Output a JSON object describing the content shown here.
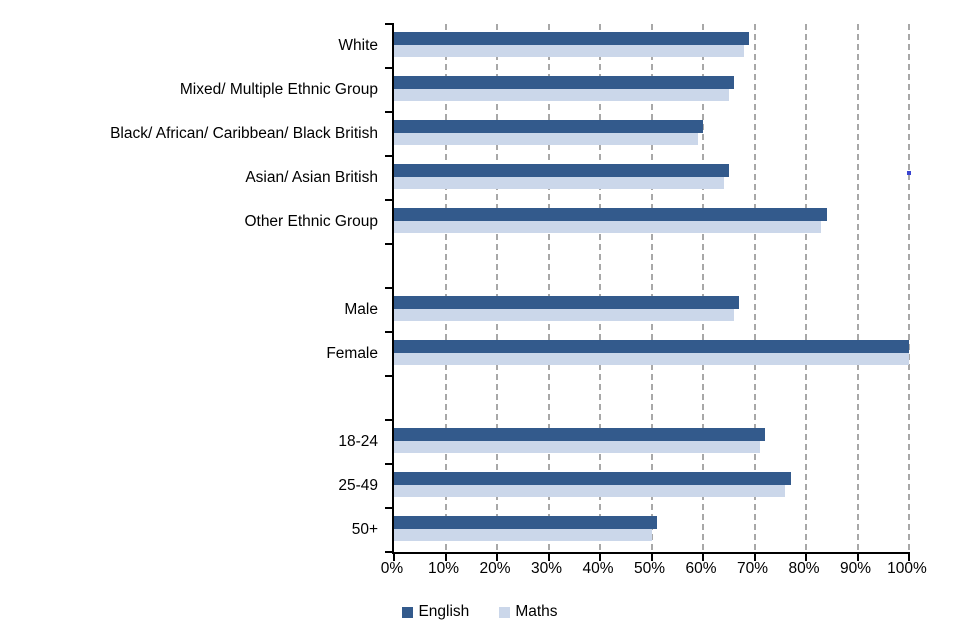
{
  "colors": {
    "english": "#335A8C",
    "maths": "#CBD7EA",
    "gridline": "#A8A8A8",
    "axis": "#000000",
    "stray_dot": "#3A45D0"
  },
  "chart_data": {
    "type": "bar",
    "orientation": "horizontal",
    "title": "",
    "xlabel": "",
    "ylabel": "",
    "categories": [
      "White",
      "Mixed/ Multiple Ethnic Group",
      "Black/ African/ Caribbean/ Black British",
      "Asian/ Asian British",
      "Other Ethnic Group",
      "",
      "Male",
      "Female",
      "",
      "18-24",
      "25-49",
      "50+"
    ],
    "series": [
      {
        "name": "English",
        "color": "#335A8C",
        "values": [
          69,
          66,
          60,
          65,
          84,
          null,
          67,
          100,
          null,
          72,
          77,
          51
        ]
      },
      {
        "name": "Maths",
        "color": "#CBD7EA",
        "values": [
          68,
          65,
          59,
          64,
          83,
          null,
          66,
          100,
          null,
          71,
          76,
          50
        ]
      }
    ],
    "x_axis": {
      "min": 0,
      "max": 100,
      "tick_labels": [
        "0%",
        "10%",
        "20%",
        "30%",
        "40%",
        "50%",
        "60%",
        "70%",
        "80%",
        "90%",
        "100%"
      ],
      "gridlines": "dashed-vertical"
    },
    "legend": {
      "position": "bottom-center",
      "items": [
        "English",
        "Maths"
      ]
    },
    "annotations": [
      {
        "name": "stray-dot",
        "x_percent": 100,
        "row": "Asian/ Asian British"
      }
    ]
  }
}
